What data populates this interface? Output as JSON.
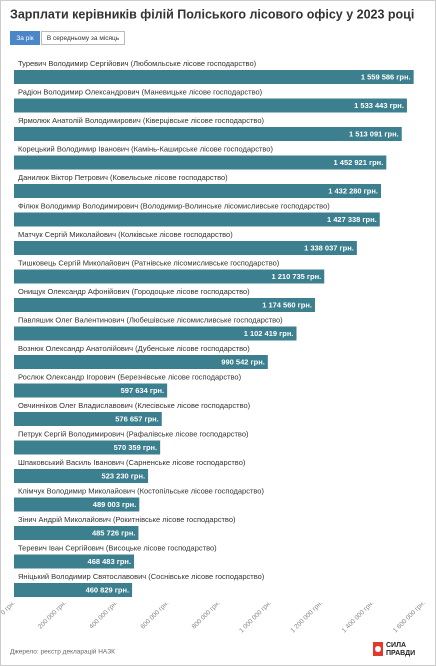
{
  "chart_data": {
    "type": "bar",
    "orientation": "horizontal",
    "title": "Зарплати керівників філій Поліського лісового офісу у 2023 році",
    "categories": [
      "Туревич Володимир Сергійович (Любомльське лісове господарство)",
      "Радіон Володимир Олександрович (Маневицьке лісове господарство)",
      "Ярмолюк Анатолій Володимирович (Ківерцівське лісове господарство)",
      "Корецький Володимир Іванович (Камінь-Каширське лісове господарство)",
      "Данилюк Віктор Петрович (Ковельське лісове господарство)",
      "Філюк Володимир Володимирович (Володимир-Волинське лісомисливське господарство)",
      "Матчук Сергій Миколайович (Колківське лісове господарство)",
      "Тишковець Сергій Миколайович (Ратнівське лісомисливське господарство)",
      "Онищук Олександр Афонійович (Городоцьке лісове господарство)",
      "Павляшик Олег Валентинович (Любешівське лісомисливське господарство)",
      "Вознюк Олександр Анатолійович (Дубенське лісове господарство)",
      "Рослюк Олександр Ігорович (Березнівське лісове господарство)",
      "Овчинніков Олег Владиславович (Клесівське лісове господарство)",
      "Петрук Сергій Володимирович (Рафалівське лісове господарство)",
      "Шпаковський Василь Іванович (Сарненське лісове господарство)",
      "Клімчук Володимир Миколайович (Костопільське лісове господарство)",
      "Зінич Андрій Миколайович (Рокитнівське лісове господарство)",
      "Теревич Іван Сергійович (Висоцьке лісове господарство)",
      "Яніцький Володимир Святославович (Соснівське лісове господарство)"
    ],
    "values": [
      1559586,
      1533443,
      1513091,
      1452921,
      1432280,
      1427338,
      1338037,
      1210735,
      1174560,
      1102419,
      990542,
      597634,
      576657,
      570359,
      523230,
      489003,
      485726,
      468483,
      460829
    ],
    "value_labels": [
      "1 559 586 грн.",
      "1 533 443 грн.",
      "1 513 091 грн.",
      "1 452 921 грн.",
      "1 432 280 грн.",
      "1 427 338 грн.",
      "1 338 037 грн.",
      "1 210 735 грн.",
      "1 174 560 грн.",
      "1 102 419 грн.",
      "990 542 грн.",
      "597 634 грн.",
      "576 657 грн.",
      "570 359 грн.",
      "523 230 грн.",
      "489 003 грн.",
      "485 726 грн.",
      "468 483 грн.",
      "460 829 грн."
    ],
    "color": "#3c7f8e",
    "xlim": [
      0,
      1600000
    ],
    "xticks": [
      {
        "value": 0,
        "label": "0 грн."
      },
      {
        "value": 200000,
        "label": "200 000 грн."
      },
      {
        "value": 400000,
        "label": "400 000 грн."
      },
      {
        "value": 600000,
        "label": "600 000 грн."
      },
      {
        "value": 800000,
        "label": "800 000 грн."
      },
      {
        "value": 1000000,
        "label": "1 000 000 грн."
      },
      {
        "value": 1200000,
        "label": "1 200 000 грн."
      },
      {
        "value": 1400000,
        "label": "1 400 000 грн."
      },
      {
        "value": 1600000,
        "label": "1 600 000 грн."
      }
    ]
  },
  "controls": [
    "За рік",
    "В середньому за місяць"
  ],
  "source": "Джерело: реєстр декларацій НАЗК",
  "logo": [
    "СИЛА",
    "ПРАВДИ"
  ]
}
